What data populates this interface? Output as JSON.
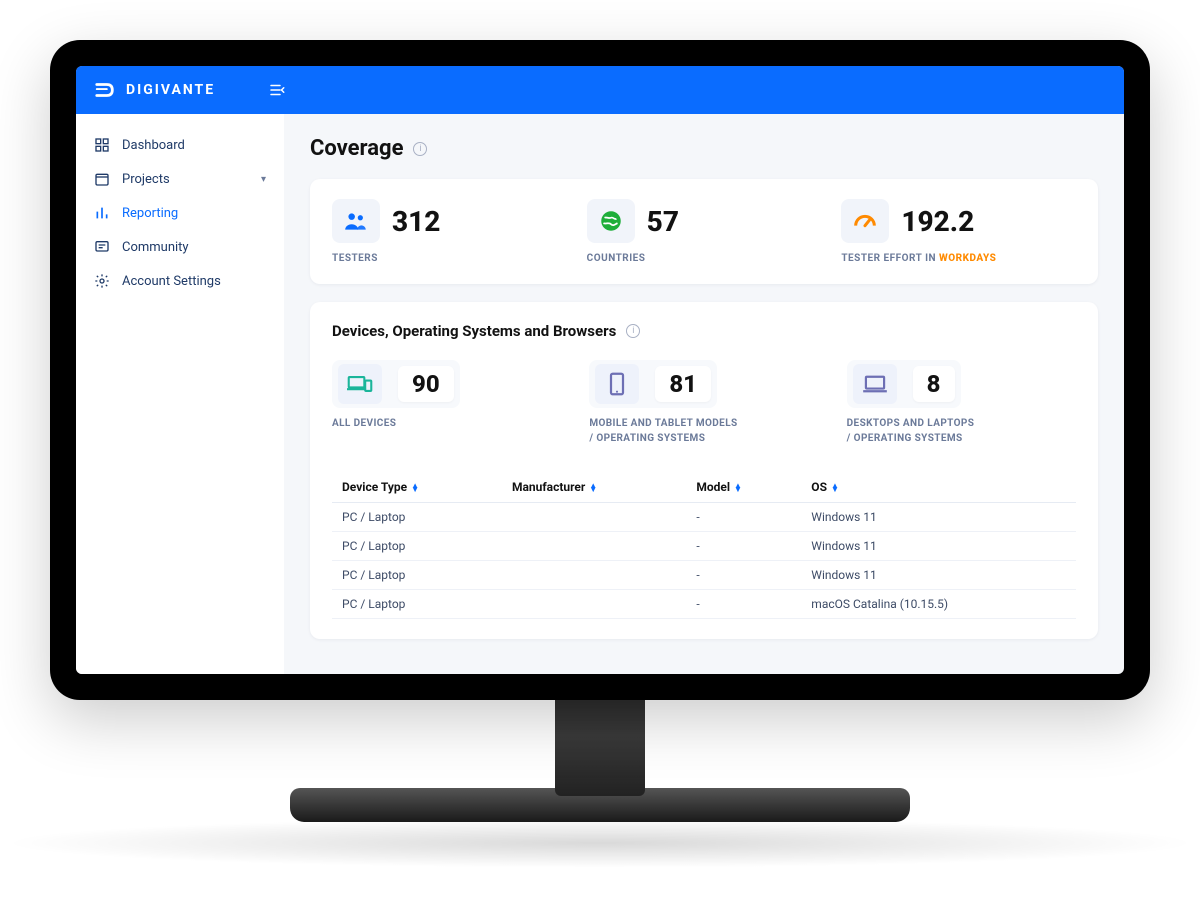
{
  "brand": {
    "name": "DIGIVANTE"
  },
  "colors": {
    "primary": "#0a6cff",
    "text": "#121212",
    "muted": "#6b7a99",
    "green": "#1fae3a",
    "orange": "#ff8a00",
    "teal": "#1ab59a",
    "indigo": "#6d6fb4",
    "bg": "#f5f7fa",
    "card": "#ffffff"
  },
  "sidebar": {
    "items": [
      {
        "label": "Dashboard",
        "icon": "dashboard-icon",
        "expandable": false
      },
      {
        "label": "Projects",
        "icon": "calendar-icon",
        "expandable": true
      },
      {
        "label": "Reporting",
        "icon": "chart-icon",
        "expandable": false,
        "active": true
      },
      {
        "label": "Community",
        "icon": "message-icon",
        "expandable": false
      },
      {
        "label": "Account Settings",
        "icon": "gear-icon",
        "expandable": false
      }
    ]
  },
  "page": {
    "title": "Coverage"
  },
  "summary": [
    {
      "value": "312",
      "label": "TESTERS",
      "icon": "people-icon",
      "icon_color": "#0a6cff"
    },
    {
      "value": "57",
      "label": "COUNTRIES",
      "icon": "globe-icon",
      "icon_color": "#1fae3a"
    },
    {
      "value": "192.2",
      "label": "TESTER EFFORT IN ",
      "label_accent": "WORKDAYS",
      "icon": "speed-icon",
      "icon_color": "#ff8a00"
    }
  ],
  "devices_section": {
    "title": "Devices, Operating Systems and Browsers",
    "blocks": [
      {
        "value": "90",
        "label": "ALL DEVICES",
        "icon": "devices-icon",
        "icon_color": "#1ab59a"
      },
      {
        "value": "81",
        "label": "MOBILE AND TABLET MODELS\n/ OPERATING SYSTEMS",
        "icon": "mobile-icon",
        "icon_color": "#6d6fb4"
      },
      {
        "value": "8",
        "label": "DESKTOPS AND LAPTOPS\n/ OPERATING SYSTEMS",
        "icon": "laptop-icon",
        "icon_color": "#6d6fb4"
      }
    ],
    "table": {
      "columns": [
        "Device Type",
        "Manufacturer",
        "Model",
        "OS"
      ],
      "rows": [
        [
          "PC / Laptop",
          "",
          "-",
          "Windows 11"
        ],
        [
          "PC / Laptop",
          "",
          "-",
          "Windows 11"
        ],
        [
          "PC / Laptop",
          "",
          "-",
          "Windows 11"
        ],
        [
          "PC / Laptop",
          "",
          "-",
          "macOS Catalina (10.15.5)"
        ]
      ]
    }
  }
}
